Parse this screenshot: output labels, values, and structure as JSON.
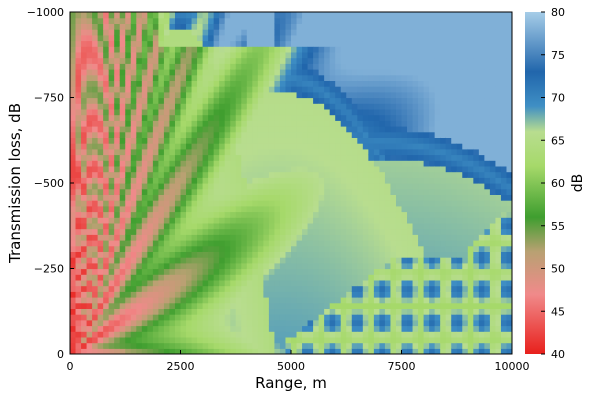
{
  "chart_data": {
    "type": "heatmap",
    "title": "",
    "xlabel": "Range, m",
    "ylabel": "Transmission loss, dB",
    "xlim": [
      0,
      10000
    ],
    "ylim": [
      0,
      -1000
    ],
    "x_ticks": [
      0,
      2500,
      5000,
      7500,
      10000
    ],
    "x_tick_labels": [
      "0",
      "2500",
      "5000",
      "7500",
      "10000"
    ],
    "y_ticks": [
      0,
      -250,
      -500,
      -750,
      -1000
    ],
    "y_tick_labels": [
      "0",
      "−250",
      "−500",
      "−750",
      "−1000"
    ],
    "colorbar": {
      "label": "dB",
      "range": [
        40,
        80
      ],
      "ticks": [
        40,
        45,
        50,
        55,
        60,
        65,
        70,
        75,
        80
      ],
      "tick_labels": [
        "40",
        "45",
        "50",
        "55",
        "60",
        "65",
        "70",
        "75",
        "80"
      ],
      "colormap": [
        [
          40,
          "#e8201c"
        ],
        [
          47,
          "#f08a8a"
        ],
        [
          52,
          "#b8a172"
        ],
        [
          56,
          "#3f9e2f"
        ],
        [
          62,
          "#a6d96a"
        ],
        [
          66,
          "#b8dd8f"
        ],
        [
          69,
          "#3f8fc4"
        ],
        [
          73,
          "#2166ac"
        ],
        [
          80,
          "#a6cde8"
        ]
      ]
    },
    "grid": false,
    "legend": "right (colorbar)",
    "description_of_field": "Bounded shallow-water/deep-water acoustic transmission loss field: fan of ray-like green bands emanating from the source at range 0, depth near 0; arcuate blue convergence/shadow bands curving down from the surface; a lower-right region of speckled interference pattern starting around 5000 m; high loss (light blue, ~78 dB) in the upper right."
  }
}
